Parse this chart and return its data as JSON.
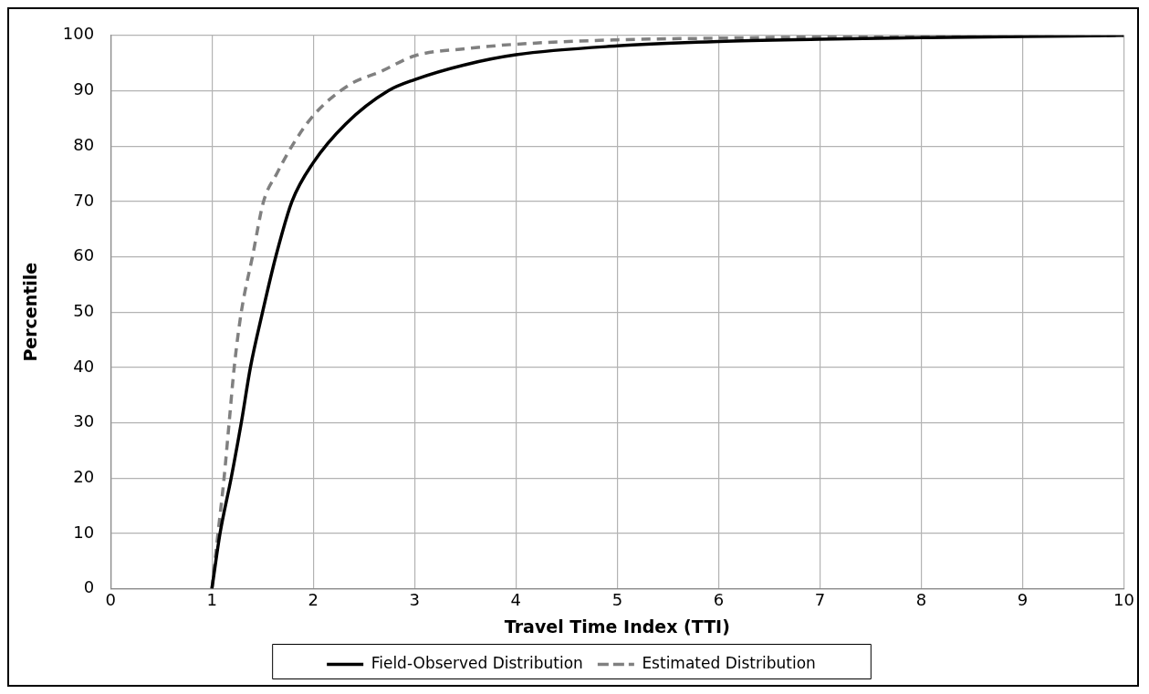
{
  "chart_data": {
    "type": "line",
    "xlabel": "Travel Time Index (TTI)",
    "ylabel": "Percentile",
    "xlim": [
      0,
      10
    ],
    "xticks": [
      0,
      1,
      2,
      3,
      4,
      5,
      6,
      7,
      8,
      9,
      10
    ],
    "ylim": [
      0,
      100
    ],
    "yticks": [
      0,
      10,
      20,
      30,
      40,
      50,
      60,
      70,
      80,
      90,
      100
    ],
    "grid": true,
    "legend": "bottom",
    "marker": "none",
    "series": [
      {
        "name": "Field-Observed Distribution",
        "color": "#000000",
        "line_style": "solid",
        "x": [
          1,
          1.08,
          1.19,
          1.29,
          1.38,
          1.5,
          1.63,
          1.79,
          2,
          2.32,
          2.74,
          3,
          3.5,
          4,
          5,
          6,
          7,
          8,
          9,
          10
        ],
        "values": [
          0,
          10,
          20,
          30,
          40,
          50,
          60,
          70,
          77,
          84,
          90,
          92,
          94.7,
          96.5,
          98.1,
          98.9,
          99.3,
          99.6,
          99.8,
          100
        ]
      },
      {
        "name": "Estimated Distribution",
        "color": "#808080",
        "line_style": "dashed",
        "x": [
          1,
          1.06,
          1.12,
          1.17,
          1.22,
          1.29,
          1.4,
          1.51,
          1.64,
          1.79,
          2,
          2.35,
          2.67,
          3,
          3.5,
          4,
          5,
          6,
          7,
          8,
          9,
          10
        ],
        "values": [
          0,
          10,
          20,
          30,
          40,
          50,
          60,
          70,
          75,
          80,
          85.5,
          91,
          93.5,
          96.3,
          97.6,
          98.4,
          99.2,
          99.5,
          99.7,
          99.8,
          99.9,
          100
        ]
      }
    ]
  }
}
